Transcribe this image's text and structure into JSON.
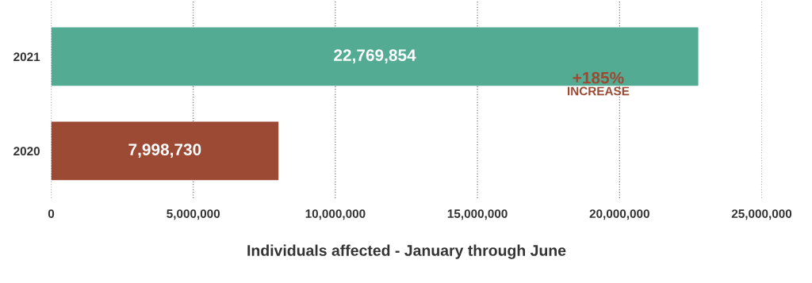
{
  "chart_data": {
    "type": "bar",
    "orientation": "horizontal",
    "categories": [
      "2021",
      "2020"
    ],
    "values": [
      22769854,
      7998730
    ],
    "colors": [
      "#52ab92",
      "#9c4a34"
    ],
    "value_labels": [
      "22,769,854",
      "7,998,730"
    ],
    "xlabel": "Individuals affected - January through June",
    "xlim": [
      0,
      25000000
    ],
    "xticks": [
      0,
      {
        "value": 5000000,
        "label": "5,000,000"
      },
      {
        "value": 10000000,
        "label": "10,000,000"
      },
      {
        "value": 15000000,
        "label": "15,000,000"
      },
      {
        "value": 20000000,
        "label": "20,000,000"
      },
      {
        "value": 25000000,
        "label": "25,000,000"
      }
    ],
    "grid": "x",
    "legend": false,
    "annotations": [
      "+185%",
      "INCREASE"
    ]
  }
}
